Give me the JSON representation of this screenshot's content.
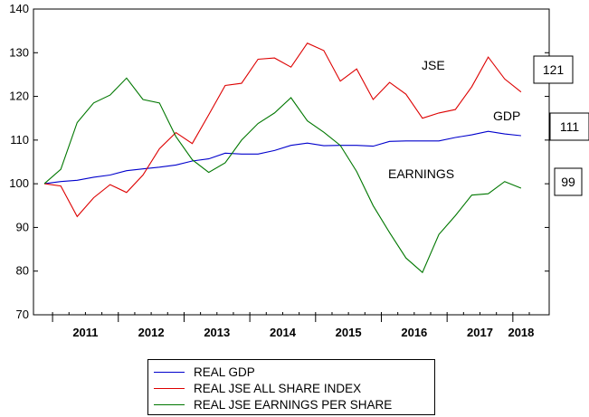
{
  "chart_data": {
    "type": "line",
    "x_year_labels": [
      "2011",
      "2012",
      "2013",
      "2014",
      "2015",
      "2016",
      "2017",
      "2018"
    ],
    "ylim": [
      70,
      140
    ],
    "yticks": [
      70,
      80,
      90,
      100,
      110,
      120,
      130,
      140
    ],
    "x_quarters_start": "2010Q4",
    "series": [
      {
        "name": "REAL GDP",
        "color": "#0000cc",
        "values": [
          100,
          100.5,
          100.8,
          101.5,
          102,
          103,
          103.4,
          103.8,
          104.3,
          105.2,
          105.7,
          107,
          106.8,
          106.8,
          107.6,
          108.8,
          109.3,
          108.7,
          108.8,
          108.8,
          108.6,
          109.7,
          109.8,
          109.8,
          109.8,
          110.6,
          111.2,
          112,
          111.4,
          111
        ]
      },
      {
        "name": "REAL JSE ALL SHARE INDEX",
        "color": "#dd0000",
        "values": [
          100,
          99.5,
          92.5,
          96.8,
          99.8,
          98,
          102,
          108,
          111.7,
          109.2,
          115.8,
          122.5,
          123,
          128.5,
          128.8,
          126.7,
          132.2,
          130.5,
          123.5,
          126.3,
          119.3,
          123.2,
          120.5,
          115,
          116.2,
          117,
          122.2,
          129,
          124,
          121
        ]
      },
      {
        "name": "REAL JSE EARNINGS PER SHARE",
        "color": "#007700",
        "values": [
          100,
          103.3,
          114,
          118.5,
          120.3,
          124.2,
          119.3,
          118.5,
          110.8,
          105.5,
          102.6,
          104.8,
          110,
          113.8,
          116.2,
          119.7,
          114.4,
          111.8,
          108.8,
          102.8,
          95,
          88.8,
          83,
          79.7,
          88.4,
          92.7,
          97.4,
          97.7,
          100.5,
          99
        ]
      }
    ],
    "annotations": [
      {
        "text": "JSE",
        "series": 1
      },
      {
        "text": "GDP",
        "series": 0
      },
      {
        "text": "EARNINGS",
        "series": 2
      }
    ],
    "end_labels": [
      {
        "text": "121",
        "series": 1
      },
      {
        "text": "111",
        "series": 0
      },
      {
        "text": "99",
        "series": 2
      }
    ],
    "legend_position": "bottom",
    "grid": false
  }
}
